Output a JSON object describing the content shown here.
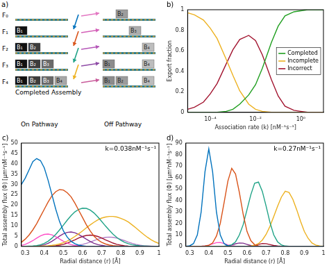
{
  "diagram": {
    "label": "a)",
    "rows": [
      {
        "label": "F₀",
        "on": [],
        "off": [
          null,
          "B₂",
          null,
          null
        ]
      },
      {
        "label": "F₁",
        "on": [
          "B₁"
        ],
        "off": [
          null,
          null,
          "B₃",
          null
        ]
      },
      {
        "label": "F₂",
        "on": [
          "B₁",
          "B₂"
        ],
        "off": [
          null,
          null,
          null,
          "B₄"
        ]
      },
      {
        "label": "F₃",
        "on": [
          "B₁",
          "B₂",
          "B₃"
        ],
        "off": [
          "B₁",
          null,
          null,
          "B₄"
        ]
      },
      {
        "label": "F₄",
        "on": [
          "B₁",
          "B₂",
          "B₃",
          "B₄"
        ],
        "off": [
          "B₁",
          "B₂",
          null,
          "B₄"
        ]
      }
    ],
    "completed_label": "Completed Assembly",
    "on_label": "On Pathway",
    "off_label": "Off Pathway"
  },
  "chart_data": [
    {
      "type": "line",
      "annotations": [
        "b)"
      ],
      "log": "x",
      "legend": "right",
      "grid": false,
      "x_label": "Association rate (k) [nM⁻¹s⁻¹]",
      "y_label": "Export fraction",
      "xlim": [
        1e-05,
        10
      ],
      "xticks": [
        {
          "value": 0.0001,
          "label": "10⁻⁴"
        },
        {
          "value": 0.01,
          "label": "10⁻²"
        },
        {
          "value": 1,
          "label": "10⁰"
        }
      ],
      "ylim": [
        0,
        1
      ],
      "yticks": [
        0,
        0.2,
        0.4,
        0.6,
        0.8,
        1
      ],
      "x": [
        1e-05,
        2e-05,
        5e-05,
        0.0001,
        0.0002,
        0.0005,
        0.001,
        0.002,
        0.005,
        0.01,
        0.02,
        0.05,
        0.1,
        0.2,
        0.5,
        1,
        2,
        5,
        10
      ],
      "series": [
        {
          "name": "Completed",
          "color": "#1f9e1f",
          "values": [
            0,
            0,
            0,
            0,
            0,
            0.01,
            0.03,
            0.08,
            0.17,
            0.27,
            0.43,
            0.68,
            0.84,
            0.94,
            0.98,
            0.99,
            1,
            1,
            1
          ]
        },
        {
          "name": "Incomplete",
          "color": "#edb120",
          "values": [
            0.97,
            0.95,
            0.9,
            0.82,
            0.72,
            0.52,
            0.36,
            0.21,
            0.08,
            0.03,
            0.01,
            0,
            0,
            0,
            0,
            0,
            0,
            0,
            0
          ]
        },
        {
          "name": "Incorrect",
          "color": "#a2142f",
          "values": [
            0.03,
            0.05,
            0.1,
            0.18,
            0.28,
            0.47,
            0.61,
            0.71,
            0.75,
            0.7,
            0.56,
            0.32,
            0.16,
            0.06,
            0.02,
            0.01,
            0,
            0,
            0
          ]
        }
      ]
    },
    {
      "type": "line",
      "annotations": [
        "c)",
        "k=0.038nM⁻¹s⁻¹"
      ],
      "grid": false,
      "x_label": "Radial distance (r) [Å]",
      "y_label": "Total assembly flux (Φ) [μm²nM⁻¹s⁻¹]",
      "xlim": [
        0.28,
        1
      ],
      "xticks": [
        0.3,
        0.4,
        0.5,
        0.6,
        0.7,
        0.8,
        0.9,
        1
      ],
      "ylim": [
        0,
        50
      ],
      "yticks": [
        0,
        5,
        10,
        15,
        20,
        25,
        30,
        35,
        40,
        45,
        50
      ],
      "x": [
        0.28,
        0.3,
        0.32,
        0.34,
        0.36,
        0.38,
        0.4,
        0.42,
        0.44,
        0.46,
        0.48,
        0.5,
        0.52,
        0.54,
        0.56,
        0.58,
        0.6,
        0.62,
        0.64,
        0.66,
        0.68,
        0.7,
        0.72,
        0.74,
        0.76,
        0.78,
        0.8,
        0.82,
        0.84,
        0.86,
        0.88,
        0.9,
        0.92,
        0.94,
        0.96,
        0.98,
        1
      ],
      "series": [
        {
          "color": "#0072bd",
          "values": [
            30,
            33,
            37,
            41,
            42.5,
            41.5,
            38,
            32,
            25,
            18,
            12,
            7.5,
            4.5,
            2.5,
            1.3,
            0.6,
            0.3,
            0,
            0,
            0,
            0,
            0,
            0,
            0,
            0,
            0,
            0,
            0,
            0,
            0,
            0,
            0,
            0,
            0,
            0,
            0,
            0
          ]
        },
        {
          "color": "#d95319",
          "values": [
            2,
            3.5,
            5.5,
            8,
            11,
            14.5,
            18,
            21.5,
            24.5,
            26.5,
            27.5,
            27.3,
            26,
            24,
            21,
            17.5,
            14,
            10.5,
            7.5,
            5,
            3.2,
            2,
            1.2,
            0.7,
            0.4,
            0.2,
            0,
            0,
            0,
            0,
            0,
            0,
            0,
            0,
            0,
            0,
            0
          ]
        },
        {
          "color": "#20a387",
          "values": [
            0,
            0,
            0.1,
            0.2,
            0.4,
            0.8,
            1.5,
            2.5,
            4,
            5.8,
            8,
            10.3,
            12.7,
            14.9,
            16.7,
            17.9,
            18.5,
            18.4,
            17.6,
            16.2,
            14.3,
            12.1,
            9.9,
            7.8,
            5.9,
            4.3,
            3,
            2,
            1.3,
            0.8,
            0.5,
            0.3,
            0.2,
            0.1,
            0,
            0,
            0
          ]
        },
        {
          "color": "#edb120",
          "values": [
            0,
            0,
            0,
            0,
            0,
            0.1,
            0.2,
            0.3,
            0.5,
            0.8,
            1.2,
            1.8,
            2.6,
            3.6,
            4.8,
            6.1,
            7.5,
            9,
            10.4,
            11.7,
            12.8,
            13.7,
            14.2,
            14.5,
            14.5,
            14.2,
            13.6,
            12.8,
            11.8,
            10.4,
            8.9,
            7.3,
            5.8,
            4.4,
            3.2,
            2.2,
            1.4
          ]
        },
        {
          "color": "#ff4fc8",
          "values": [
            0.5,
            1,
            1.8,
            2.8,
            4,
            5.1,
            5.8,
            6,
            5.6,
            4.7,
            3.6,
            2.5,
            1.6,
            0.9,
            0.5,
            0.2,
            0,
            0,
            0,
            0,
            0,
            0,
            0,
            0,
            0,
            0,
            0,
            0,
            0,
            0,
            0,
            0,
            0,
            0,
            0,
            0,
            0
          ]
        },
        {
          "color": "#7e2f8e",
          "values": [
            0,
            0,
            0,
            0,
            0.1,
            0.4,
            0.8,
            1.5,
            2.5,
            3.7,
            5,
            6.1,
            6.8,
            7,
            6.6,
            5.8,
            4.7,
            3.5,
            2.4,
            1.5,
            0.9,
            0.5,
            0.2,
            0.1,
            0,
            0,
            0,
            0,
            0,
            0,
            0,
            0,
            0,
            0,
            0,
            0,
            0
          ]
        },
        {
          "color": "#a2142f",
          "values": [
            0,
            0,
            0,
            0,
            0,
            0,
            0,
            0,
            0.1,
            0.3,
            0.6,
            1,
            1.6,
            2.4,
            3.2,
            4.1,
            4.8,
            5.3,
            5.5,
            5.3,
            4.8,
            4.1,
            3.2,
            2.4,
            1.6,
            1,
            0.6,
            0.3,
            0.1,
            0,
            0,
            0,
            0,
            0,
            0,
            0,
            0
          ]
        },
        {
          "color": "#b07cc6",
          "values": [
            0,
            0,
            0,
            0,
            0,
            0,
            0,
            0,
            0,
            0,
            0,
            0,
            0,
            0,
            0.3,
            0.6,
            1,
            1.5,
            2.1,
            2.8,
            3.5,
            4,
            4.4,
            4.5,
            4.4,
            4,
            3.4,
            2.8,
            2.1,
            1.5,
            1,
            0.6,
            0.3,
            0.2,
            0.1,
            0,
            0
          ]
        }
      ]
    },
    {
      "type": "line",
      "annotations": [
        "d)",
        "k=0.27nM⁻¹s⁻¹"
      ],
      "grid": false,
      "x_label": "Radial distance (r) [Å]",
      "y_label": "Total assembly flux (Φ) [μm²nM⁻¹s⁻¹]",
      "xlim": [
        0.28,
        1
      ],
      "xticks": [
        0.3,
        0.4,
        0.5,
        0.6,
        0.7,
        0.8,
        0.9,
        1
      ],
      "ylim": [
        0,
        90
      ],
      "yticks": [
        0,
        10,
        20,
        30,
        40,
        50,
        60,
        70,
        80,
        90
      ],
      "x": [
        0.28,
        0.3,
        0.32,
        0.34,
        0.36,
        0.38,
        0.4,
        0.42,
        0.44,
        0.46,
        0.48,
        0.5,
        0.52,
        0.54,
        0.56,
        0.58,
        0.6,
        0.62,
        0.64,
        0.66,
        0.68,
        0.7,
        0.72,
        0.74,
        0.76,
        0.78,
        0.8,
        0.82,
        0.84,
        0.86,
        0.88,
        0.9,
        0.92,
        0.94,
        0.96,
        0.98,
        1
      ],
      "series": [
        {
          "color": "#0072bd",
          "values": [
            0,
            0.5,
            2.5,
            10,
            30,
            65,
            85,
            65,
            30,
            10,
            2.5,
            0.5,
            0,
            0,
            0,
            0,
            0,
            0,
            0,
            0,
            0,
            0,
            0,
            0,
            0,
            0,
            0,
            0,
            0,
            0,
            0,
            0,
            0,
            0,
            0,
            0,
            0
          ]
        },
        {
          "color": "#d95319",
          "values": [
            0,
            0,
            0,
            0,
            0,
            0.3,
            1,
            3,
            9,
            20,
            38,
            57,
            68,
            63,
            47,
            28,
            13,
            5,
            1.5,
            0.4,
            0,
            0,
            0,
            0,
            0,
            0,
            0,
            0,
            0,
            0,
            0,
            0,
            0,
            0,
            0,
            0,
            0
          ]
        },
        {
          "color": "#20a387",
          "values": [
            0,
            0,
            0,
            0,
            0,
            0,
            0,
            0,
            0,
            0,
            0,
            0.5,
            1.5,
            4,
            10,
            19,
            32,
            45,
            55,
            56,
            48,
            35,
            21,
            10,
            4,
            1.3,
            0.3,
            0,
            0,
            0,
            0,
            0,
            0,
            0,
            0,
            0,
            0
          ]
        },
        {
          "color": "#edb120",
          "values": [
            0,
            0,
            0,
            0,
            0,
            0,
            0,
            0,
            0,
            0,
            0,
            0,
            0,
            0,
            0,
            0,
            0,
            0.3,
            1,
            2.5,
            5.5,
            10.5,
            17.5,
            26,
            35,
            43,
            48,
            47,
            41,
            32,
            22,
            13,
            7,
            3,
            1.2,
            0.4,
            0.1
          ]
        },
        {
          "color": "#ff4fc8",
          "values": [
            0,
            0,
            0,
            0,
            0,
            0.3,
            1,
            2.2,
            3.3,
            3.4,
            2.5,
            1.3,
            0.5,
            0.2,
            0,
            0,
            0,
            0,
            0,
            0,
            0,
            0,
            0,
            0,
            0,
            0,
            0,
            0,
            0,
            0,
            0,
            0,
            0,
            0,
            0,
            0,
            0
          ]
        },
        {
          "color": "#7e2f8e",
          "values": [
            0,
            0,
            0,
            0,
            0,
            0,
            0,
            0,
            0,
            0,
            0,
            0.4,
            1.2,
            2.3,
            3,
            2.8,
            1.8,
            0.8,
            0.3,
            0,
            0,
            0,
            0,
            0,
            0,
            0,
            0,
            0,
            0,
            0,
            0,
            0,
            0,
            0,
            0,
            0,
            0
          ]
        },
        {
          "color": "#a2142f",
          "values": [
            0,
            0,
            0,
            0,
            0,
            0,
            0,
            0,
            0,
            0,
            0,
            0,
            0,
            0,
            0,
            0,
            0,
            0.4,
            1,
            1.8,
            2.5,
            2.4,
            1.6,
            0.8,
            0.3,
            0,
            0,
            0,
            0,
            0,
            0,
            0,
            0,
            0,
            0,
            0,
            0
          ]
        }
      ]
    }
  ]
}
